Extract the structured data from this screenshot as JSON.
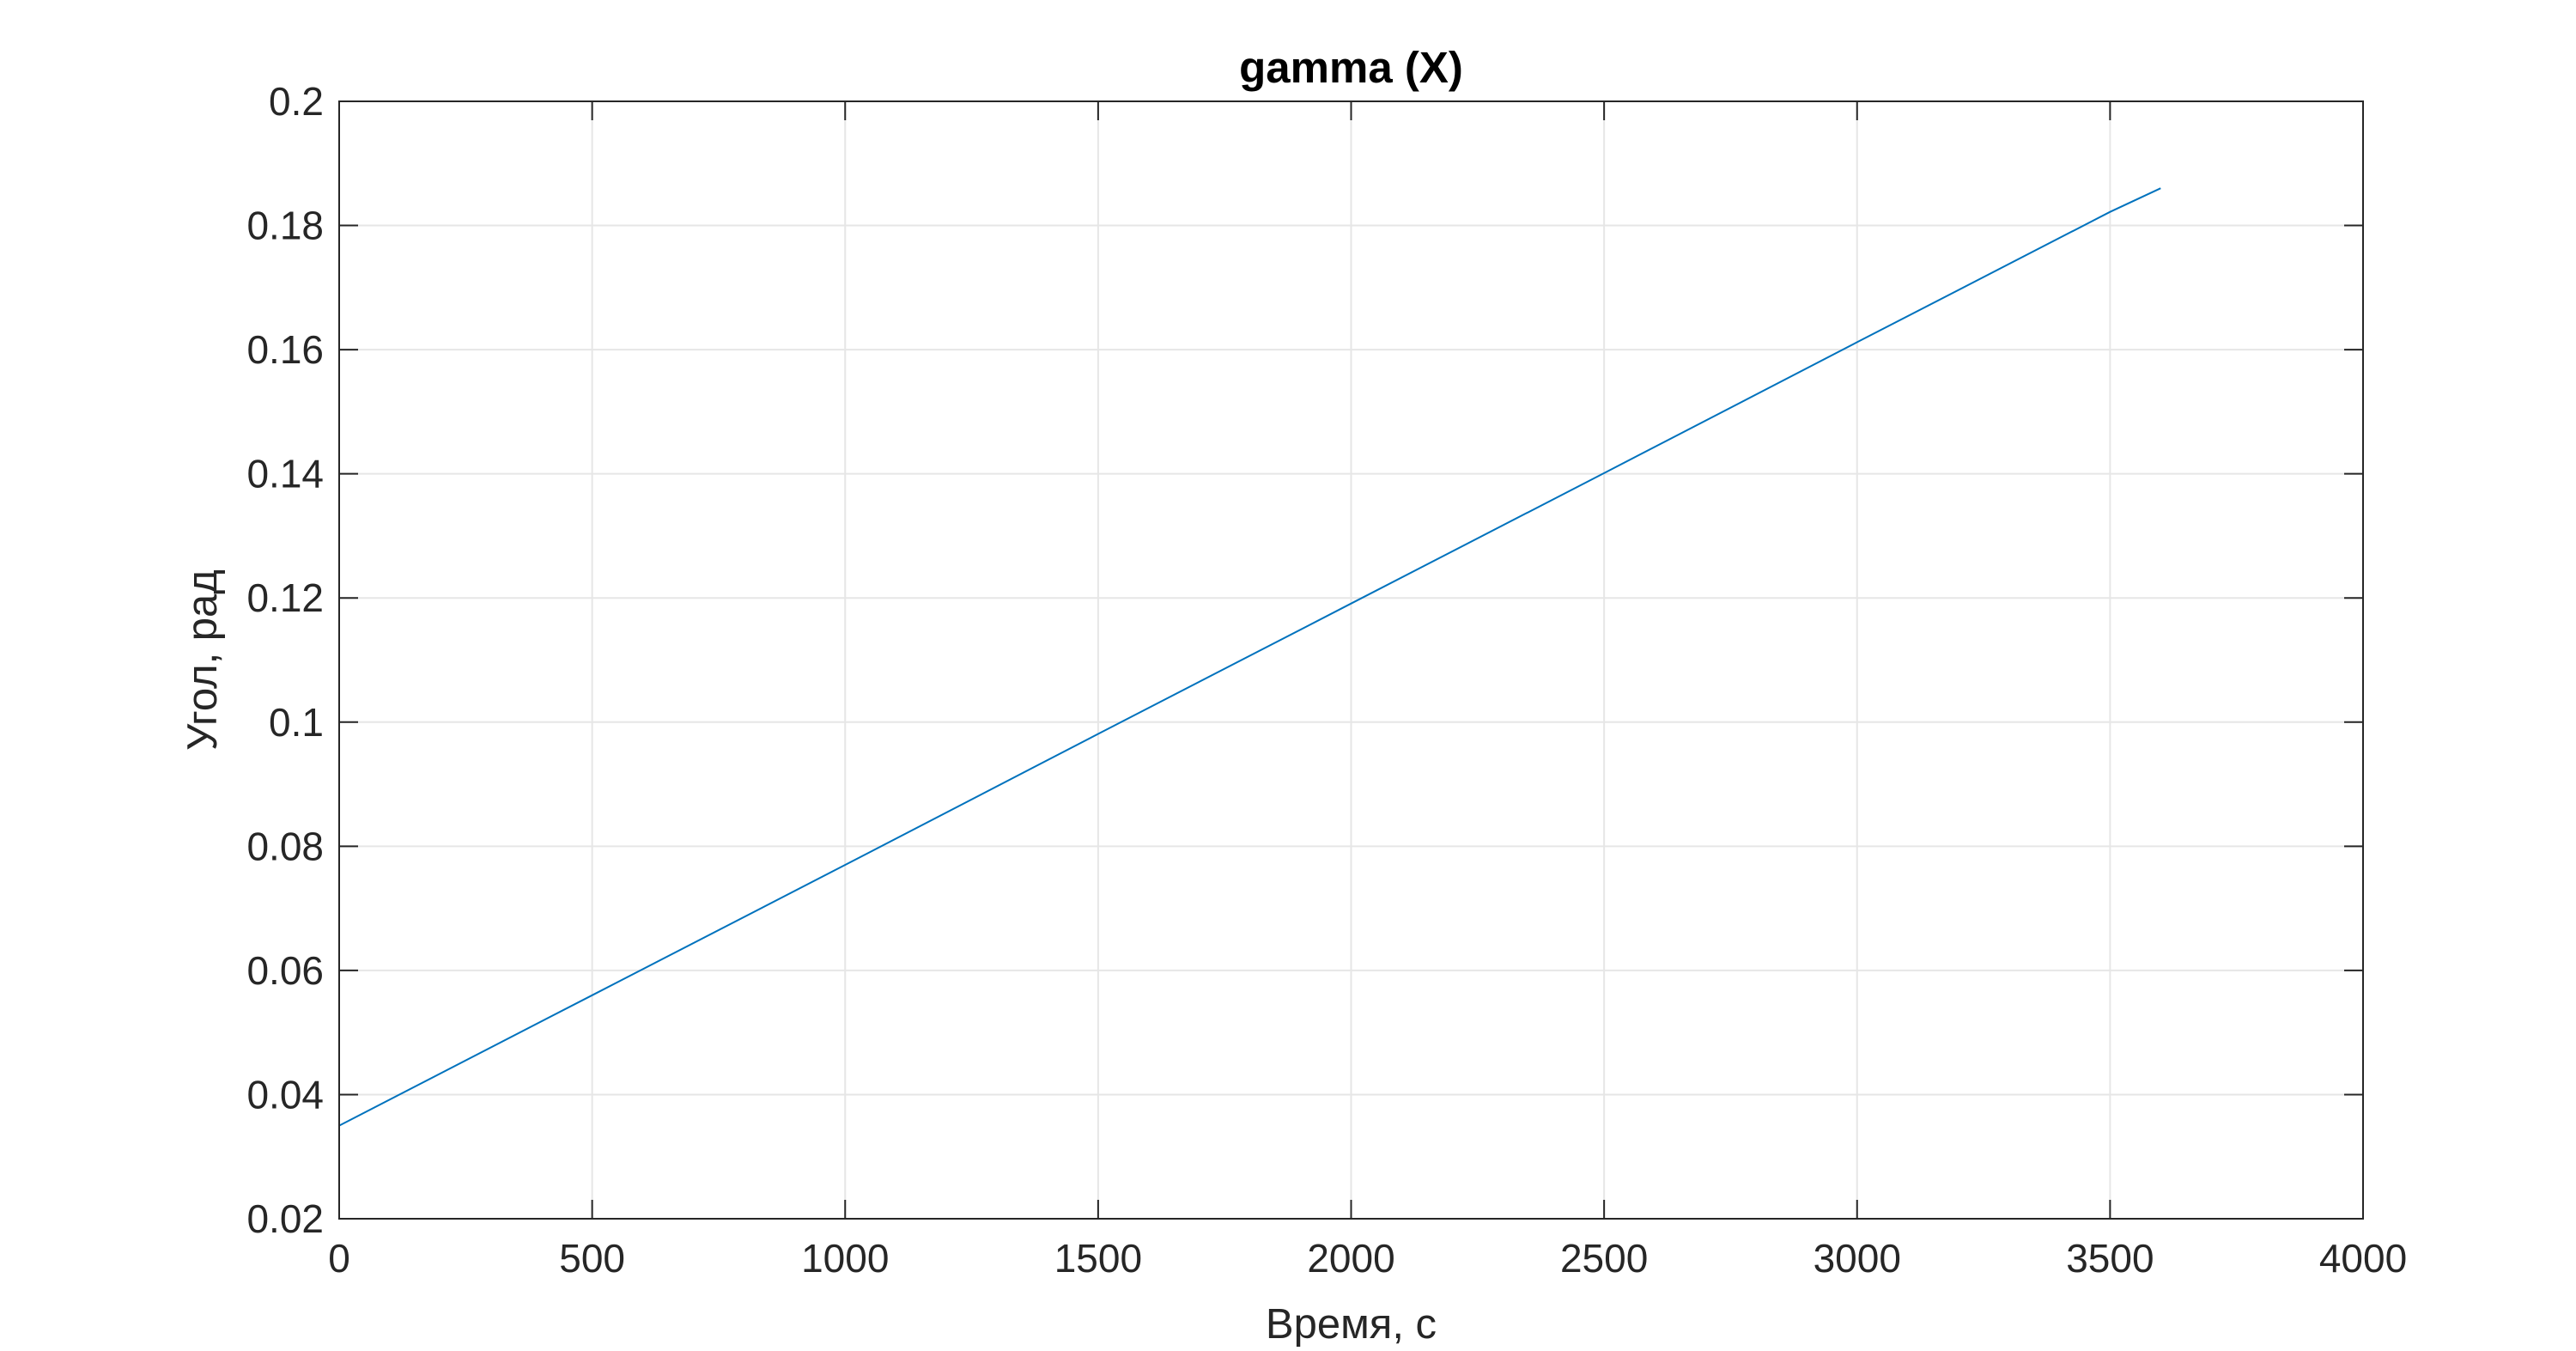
{
  "chart_data": {
    "type": "line",
    "title": "gamma (X)",
    "xlabel": "Время, с",
    "ylabel": "Угол, рад",
    "xlim": [
      0,
      4000
    ],
    "ylim": [
      0.02,
      0.2
    ],
    "grid": true,
    "x_ticks": [
      "0",
      "500",
      "1000",
      "1500",
      "2000",
      "2500",
      "3000",
      "3500",
      "4000"
    ],
    "y_ticks": [
      "0.02",
      "0.04",
      "0.06",
      "0.08",
      "0.1",
      "0.12",
      "0.14",
      "0.16",
      "0.18",
      "0.2"
    ],
    "series": [
      {
        "color": "#0072bd",
        "x": [
          0,
          500,
          1000,
          1500,
          2000,
          2500,
          3000,
          3500,
          3600
        ],
        "y": [
          0.035,
          0.056,
          0.077,
          0.0981,
          0.1191,
          0.1401,
          0.1612,
          0.1822,
          0.186
        ]
      }
    ]
  }
}
